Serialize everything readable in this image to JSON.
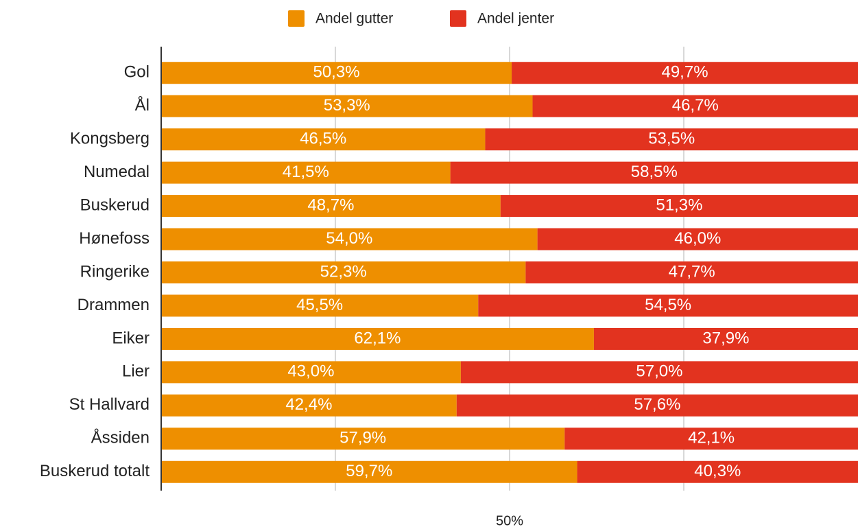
{
  "chart_data": {
    "type": "stacked_bar_horizontal",
    "categories": [
      "Gol",
      "Ål",
      "Kongsberg",
      "Numedal",
      "Buskerud",
      "Hønefoss",
      "Ringerike",
      "Drammen",
      "Eiker",
      "Lier",
      "St Hallvard",
      "Åssiden",
      "Buskerud totalt"
    ],
    "series": [
      {
        "name": "Andel gutter",
        "color": "#ee8f00",
        "values": [
          50.3,
          53.3,
          46.5,
          41.5,
          48.7,
          54.0,
          52.3,
          45.5,
          62.1,
          43.0,
          42.4,
          57.9,
          59.7
        ],
        "value_labels": [
          "50,3%",
          "53,3%",
          "46,5%",
          "41,5%",
          "48,7%",
          "54,0%",
          "52,3%",
          "45,5%",
          "62,1%",
          "43,0%",
          "42,4%",
          "57,9%",
          "59,7%"
        ]
      },
      {
        "name": "Andel jenter",
        "color": "#e2331f",
        "values": [
          49.7,
          46.7,
          53.5,
          58.5,
          51.3,
          46.0,
          47.7,
          54.5,
          37.9,
          57.0,
          57.6,
          42.1,
          40.3
        ],
        "value_labels": [
          "49,7%",
          "46,7%",
          "53,5%",
          "58,5%",
          "51,3%",
          "46,0%",
          "47,7%",
          "54,5%",
          "37,9%",
          "57,0%",
          "57,6%",
          "42,1%",
          "40,3%"
        ]
      }
    ],
    "xlim": [
      0,
      100
    ],
    "xticks": [
      {
        "value": 50,
        "label": "50%"
      }
    ],
    "xgrid": [
      25,
      50,
      75
    ],
    "grid": true,
    "legend": "top"
  }
}
